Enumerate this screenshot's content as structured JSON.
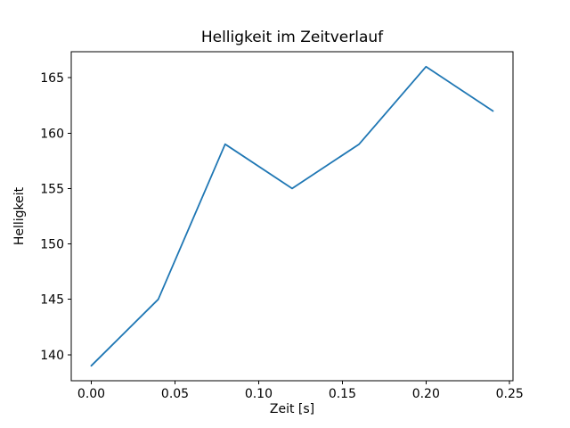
{
  "chart_data": {
    "type": "line",
    "title": "Helligkeit im Zeitverlauf",
    "xlabel": "Zeit [s]",
    "ylabel": "Helligkeit",
    "x": [
      0.0,
      0.04,
      0.08,
      0.12,
      0.16,
      0.2,
      0.24
    ],
    "y": [
      139,
      145,
      159,
      155,
      159,
      166,
      162
    ],
    "xlim": [
      -0.012,
      0.252
    ],
    "ylim": [
      137.65,
      167.35
    ],
    "xticks": [
      0.0,
      0.05,
      0.1,
      0.15,
      0.2,
      0.25
    ],
    "xtick_labels": [
      "0.00",
      "0.05",
      "0.10",
      "0.15",
      "0.20",
      "0.25"
    ],
    "yticks": [
      140,
      145,
      150,
      155,
      160,
      165
    ],
    "ytick_labels": [
      "140",
      "145",
      "150",
      "155",
      "160",
      "165"
    ],
    "line_color": "#1f77b4",
    "grid": false,
    "legend_position": "none"
  }
}
